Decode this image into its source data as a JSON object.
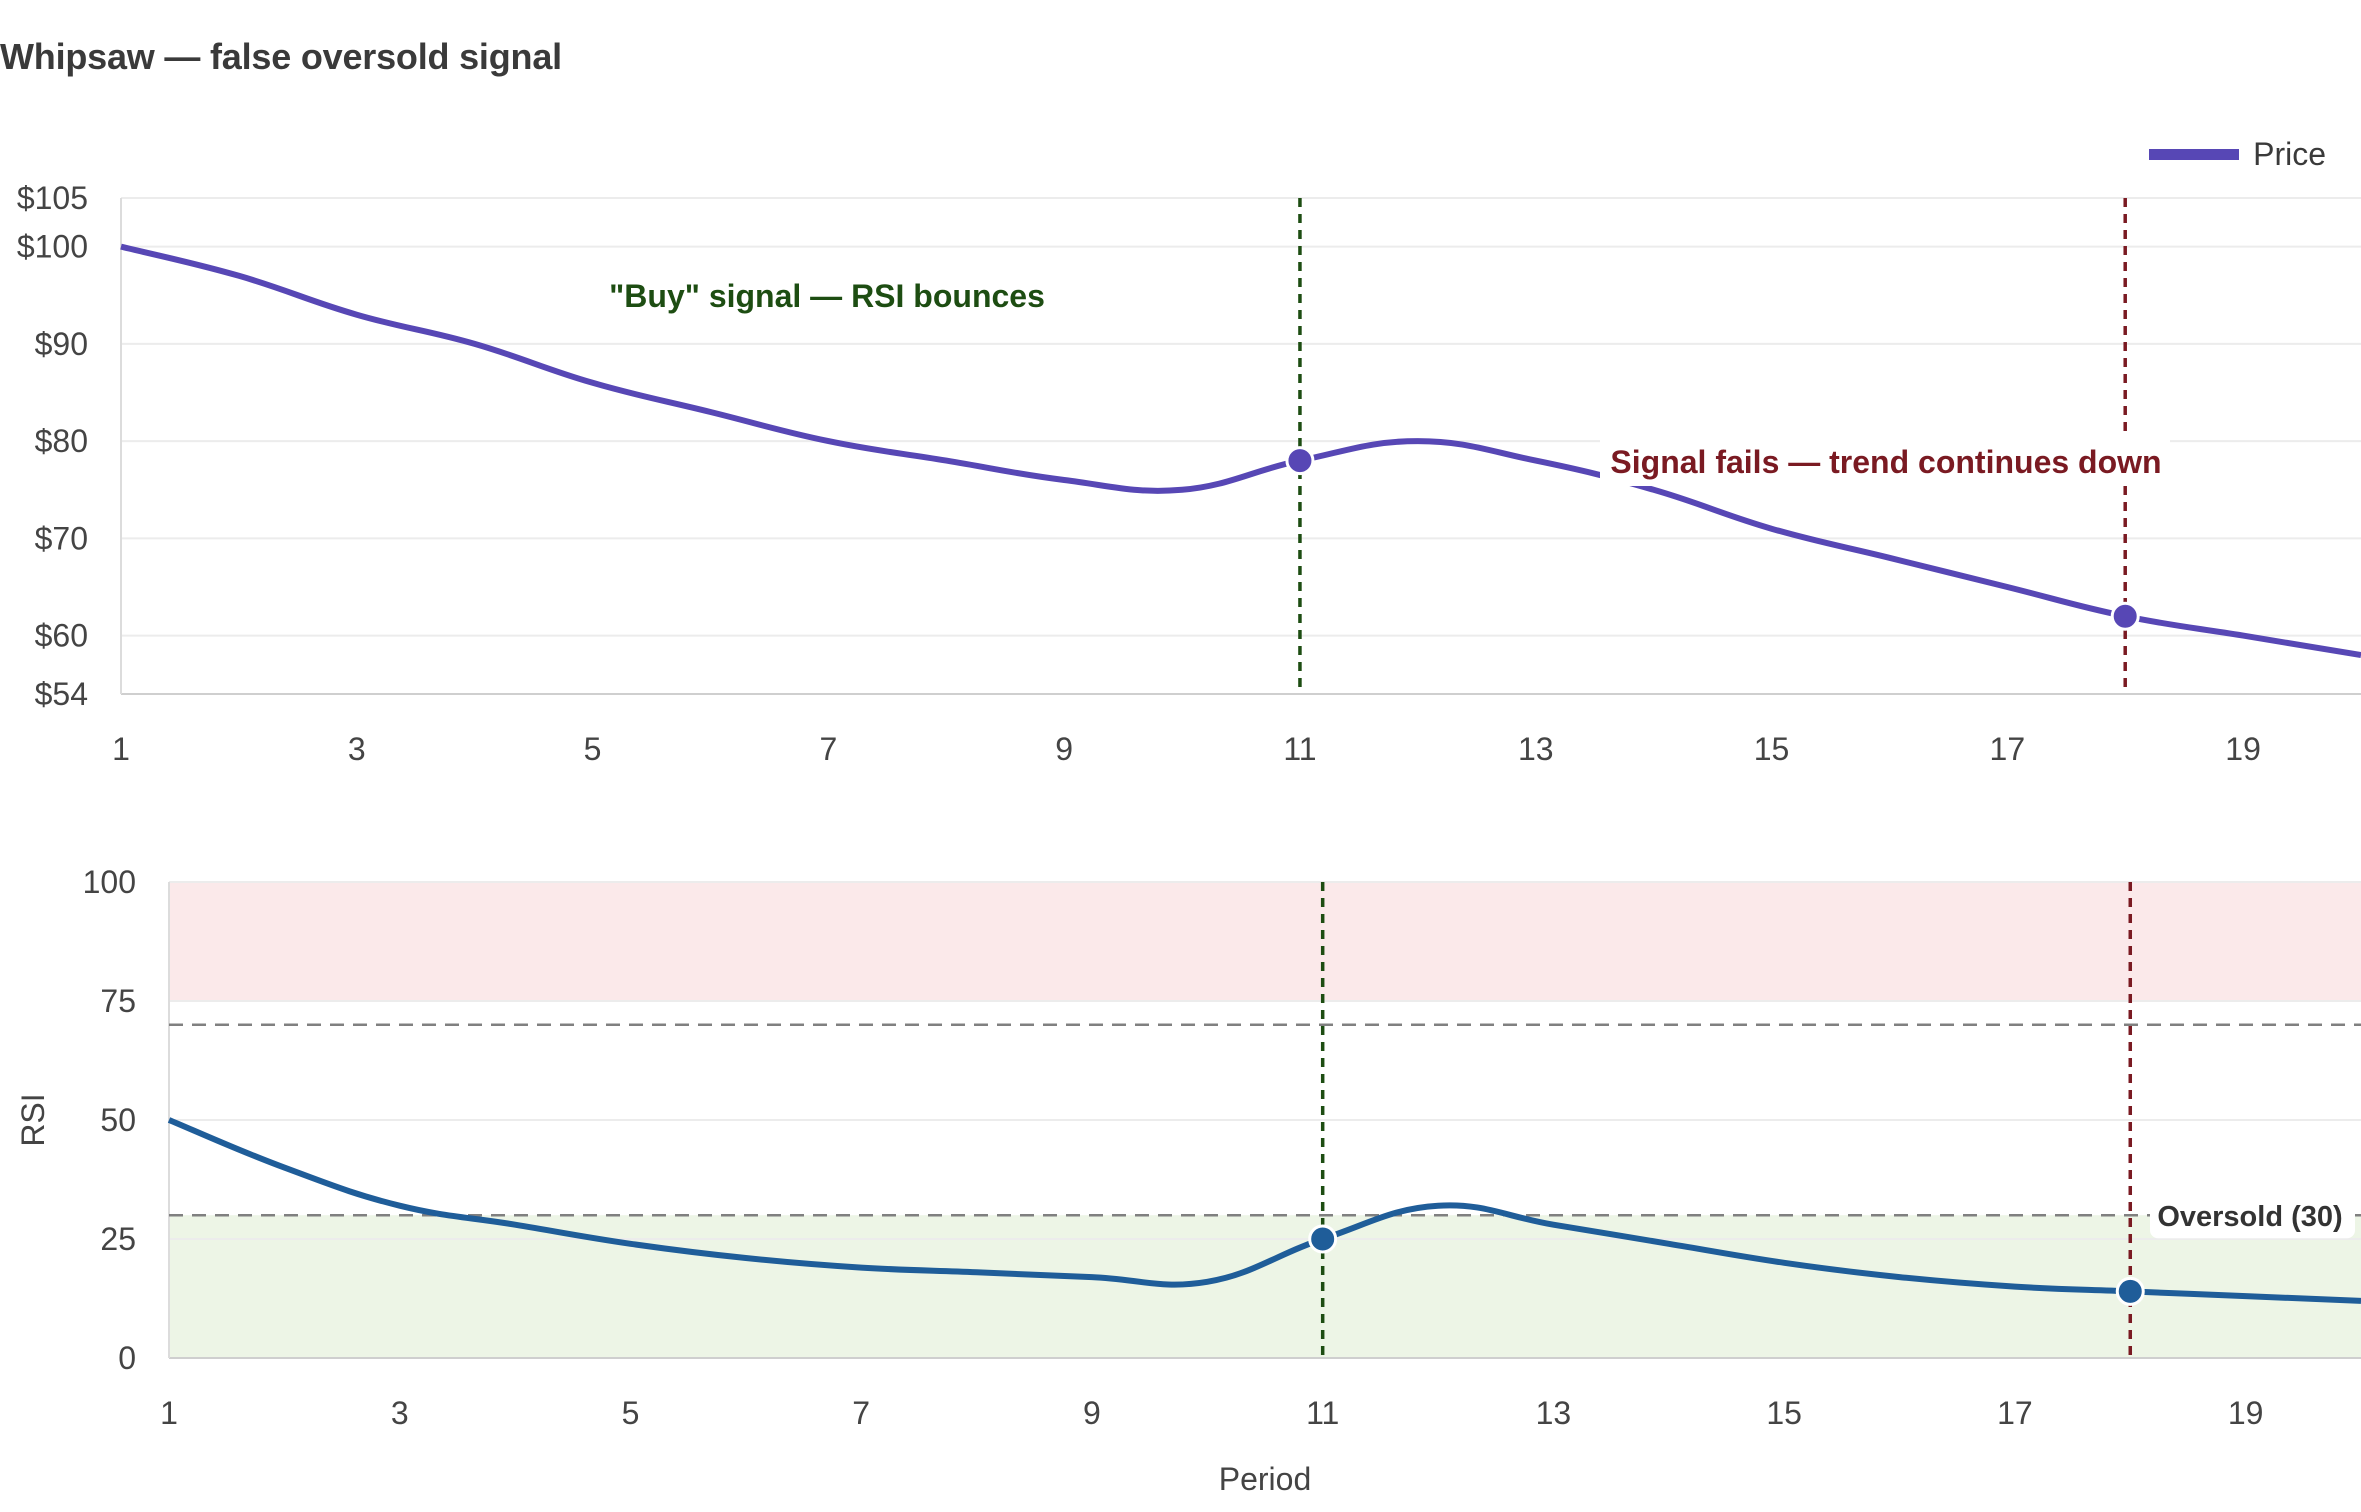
{
  "title": "Whipsaw — false oversold signal",
  "colors": {
    "price": "#5747b5",
    "rsi": "#1f5d99",
    "buy": "#1d4d12",
    "fail": "#7a1a22",
    "overbought_zone": "#fbe9ea",
    "oversold_zone": "#edf5e6",
    "grid": "#ececec",
    "threshold": "#808080"
  },
  "chart_data": [
    {
      "type": "line",
      "x": [
        1,
        2,
        3,
        4,
        5,
        6,
        7,
        8,
        9,
        10,
        11,
        12,
        13,
        14,
        15,
        16,
        17,
        18,
        19,
        20
      ],
      "series": [
        {
          "name": "Price",
          "values": [
            100,
            97,
            93,
            90,
            86,
            83,
            80,
            78,
            76,
            75,
            78,
            80,
            78,
            75,
            71,
            68,
            65,
            62,
            60,
            58
          ]
        }
      ],
      "ylim": [
        54,
        105
      ],
      "y_ticks": [
        54,
        60,
        70,
        80,
        90,
        100,
        105
      ],
      "y_tick_labels": [
        "$54",
        "$60",
        "$70",
        "$80",
        "$90",
        "$100",
        "$105"
      ],
      "x_ticks": [
        1,
        3,
        5,
        7,
        9,
        11,
        13,
        15,
        17,
        19
      ],
      "legend": {
        "position": "top-right",
        "entries": [
          "Price"
        ]
      },
      "vlines": [
        {
          "x": 11,
          "role": "buy"
        },
        {
          "x": 18,
          "role": "fail"
        }
      ],
      "markers": [
        {
          "x": 11,
          "y": 78
        },
        {
          "x": 18,
          "y": 62
        }
      ],
      "annotations": [
        {
          "text": "\"Buy\" signal — RSI bounces",
          "x": 9,
          "y": 95,
          "role": "buy"
        },
        {
          "text": "Signal fails — trend continues down",
          "x": 15.5,
          "y": 78,
          "role": "fail"
        }
      ]
    },
    {
      "type": "line",
      "x": [
        1,
        2,
        3,
        4,
        5,
        6,
        7,
        8,
        9,
        10,
        11,
        12,
        13,
        14,
        15,
        16,
        17,
        18,
        19,
        20
      ],
      "series": [
        {
          "name": "RSI",
          "values": [
            50,
            40,
            32,
            28,
            24,
            21,
            19,
            18,
            17,
            16,
            25,
            32,
            28,
            24,
            20,
            17,
            15,
            14,
            13,
            12
          ]
        }
      ],
      "ylabel": "RSI",
      "xlabel": "Period",
      "ylim": [
        0,
        100
      ],
      "y_ticks": [
        0,
        25,
        50,
        75,
        100
      ],
      "x_ticks": [
        1,
        3,
        5,
        7,
        9,
        11,
        13,
        15,
        17,
        19
      ],
      "zones": [
        {
          "from": 75,
          "to": 100,
          "role": "overbought"
        },
        {
          "from": 0,
          "to": 30,
          "role": "oversold"
        }
      ],
      "thresholds": [
        {
          "y": 70
        },
        {
          "y": 30,
          "label": "Oversold (30)"
        }
      ],
      "vlines": [
        {
          "x": 11,
          "role": "buy"
        },
        {
          "x": 18,
          "role": "fail"
        }
      ],
      "markers": [
        {
          "x": 11,
          "y": 25
        },
        {
          "x": 18,
          "y": 14
        }
      ]
    }
  ]
}
